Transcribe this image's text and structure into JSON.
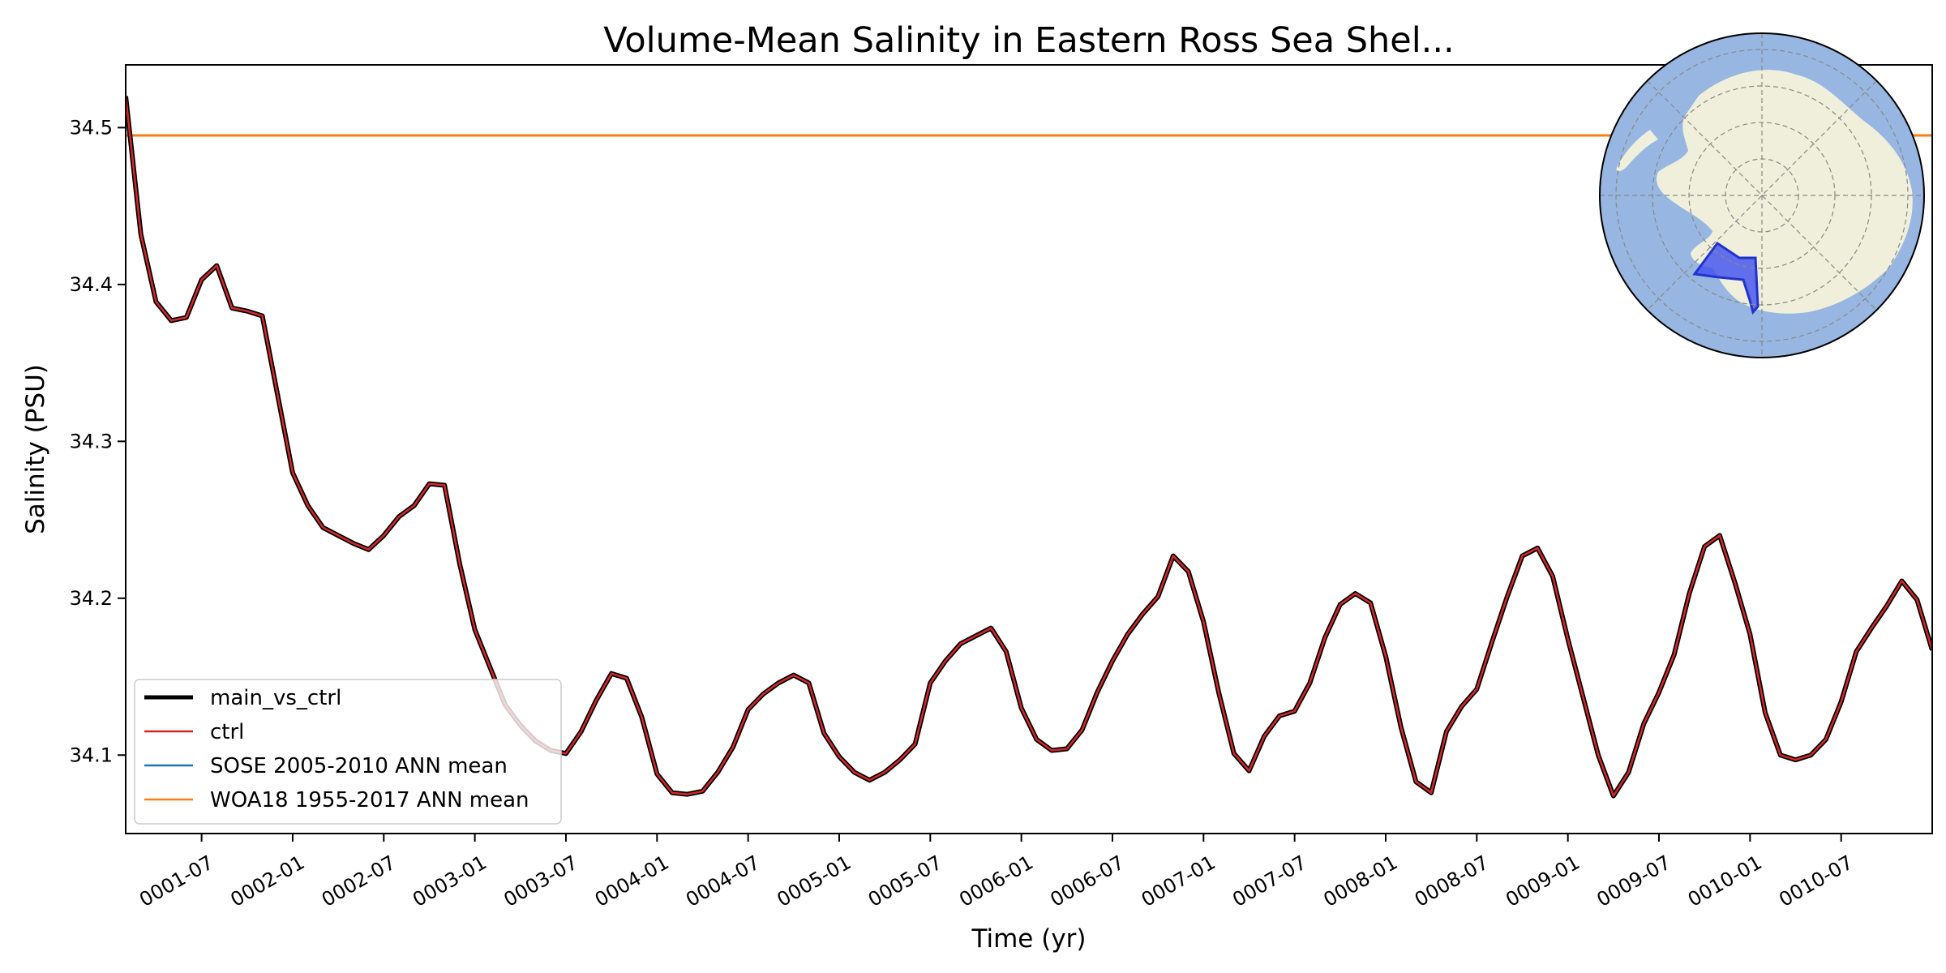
{
  "chart_data": {
    "type": "line",
    "title": "Volume-Mean Salinity in Eastern Ross Sea Shel...",
    "xlabel": "Time (yr)",
    "ylabel": "Salinity (PSU)",
    "xlim": [
      1.0833,
      11.0
    ],
    "ylim": [
      34.05,
      34.54
    ],
    "x_ticks": [
      {
        "label": "0001-07",
        "value": 1.5
      },
      {
        "label": "0002-01",
        "value": 2.0
      },
      {
        "label": "0002-07",
        "value": 2.5
      },
      {
        "label": "0003-01",
        "value": 3.0
      },
      {
        "label": "0003-07",
        "value": 3.5
      },
      {
        "label": "0004-01",
        "value": 4.0
      },
      {
        "label": "0004-07",
        "value": 4.5
      },
      {
        "label": "0005-01",
        "value": 5.0
      },
      {
        "label": "0005-07",
        "value": 5.5
      },
      {
        "label": "0006-01",
        "value": 6.0
      },
      {
        "label": "0006-07",
        "value": 6.5
      },
      {
        "label": "0007-01",
        "value": 7.0
      },
      {
        "label": "0007-07",
        "value": 7.5
      },
      {
        "label": "0008-01",
        "value": 8.0
      },
      {
        "label": "0008-07",
        "value": 8.5
      },
      {
        "label": "0009-01",
        "value": 9.0
      },
      {
        "label": "0009-07",
        "value": 9.5
      },
      {
        "label": "0010-01",
        "value": 10.0
      },
      {
        "label": "0010-07",
        "value": 10.5
      }
    ],
    "y_ticks": [
      {
        "label": "34.1",
        "value": 34.1
      },
      {
        "label": "34.2",
        "value": 34.2
      },
      {
        "label": "34.3",
        "value": 34.3
      },
      {
        "label": "34.4",
        "value": 34.4
      },
      {
        "label": "34.5",
        "value": 34.5
      }
    ],
    "series": [
      {
        "name": "main_vs_ctrl",
        "color": "#000000",
        "values": [
          34.52,
          34.432,
          34.389,
          34.377,
          34.379,
          34.403,
          34.412,
          34.385,
          34.383,
          34.38,
          34.33,
          34.28,
          34.259,
          34.245,
          34.24,
          34.235,
          34.231,
          34.24,
          34.252,
          34.259,
          34.273,
          34.272,
          34.222,
          34.18,
          34.156,
          34.132,
          34.119,
          34.109,
          34.103,
          34.101,
          34.115,
          34.135,
          34.152,
          34.149,
          34.124,
          34.088,
          34.076,
          34.075,
          34.077,
          34.089,
          34.105,
          34.129,
          34.139,
          34.146,
          34.151,
          34.146,
          34.114,
          34.099,
          34.089,
          34.084,
          34.089,
          34.097,
          34.107,
          34.146,
          34.16,
          34.171,
          34.176,
          34.181,
          34.166,
          34.13,
          34.11,
          34.103,
          34.104,
          34.116,
          34.14,
          34.16,
          34.177,
          34.19,
          34.201,
          34.227,
          34.217,
          34.185,
          34.14,
          34.101,
          34.09,
          34.112,
          34.125,
          34.128,
          34.146,
          34.175,
          34.196,
          34.203,
          34.197,
          34.163,
          34.118,
          34.083,
          34.076,
          34.115,
          34.131,
          34.142,
          34.172,
          34.201,
          34.227,
          34.232,
          34.214,
          34.174,
          34.137,
          34.1,
          34.074,
          34.089,
          34.12,
          34.14,
          34.164,
          34.203,
          34.233,
          34.24,
          34.21,
          34.177,
          34.127,
          34.1,
          34.097,
          34.1,
          34.11,
          34.134,
          34.166,
          34.181,
          34.195,
          34.211,
          34.199,
          34.167
        ]
      },
      {
        "name": "ctrl",
        "color": "#d62728",
        "values": [
          34.52,
          34.432,
          34.389,
          34.377,
          34.379,
          34.403,
          34.412,
          34.385,
          34.383,
          34.38,
          34.33,
          34.28,
          34.259,
          34.245,
          34.24,
          34.235,
          34.231,
          34.24,
          34.252,
          34.259,
          34.273,
          34.272,
          34.222,
          34.18,
          34.156,
          34.132,
          34.119,
          34.109,
          34.103,
          34.101,
          34.115,
          34.135,
          34.152,
          34.149,
          34.124,
          34.088,
          34.076,
          34.075,
          34.077,
          34.089,
          34.105,
          34.129,
          34.139,
          34.146,
          34.151,
          34.146,
          34.114,
          34.099,
          34.089,
          34.084,
          34.089,
          34.097,
          34.107,
          34.146,
          34.16,
          34.171,
          34.176,
          34.181,
          34.166,
          34.13,
          34.11,
          34.103,
          34.104,
          34.116,
          34.14,
          34.16,
          34.177,
          34.19,
          34.201,
          34.227,
          34.217,
          34.185,
          34.14,
          34.101,
          34.09,
          34.112,
          34.125,
          34.128,
          34.146,
          34.175,
          34.196,
          34.203,
          34.197,
          34.163,
          34.118,
          34.083,
          34.076,
          34.115,
          34.131,
          34.142,
          34.172,
          34.201,
          34.227,
          34.232,
          34.214,
          34.174,
          34.137,
          34.1,
          34.074,
          34.089,
          34.12,
          34.14,
          34.164,
          34.203,
          34.233,
          34.24,
          34.21,
          34.177,
          34.127,
          34.1,
          34.097,
          34.1,
          34.11,
          34.134,
          34.166,
          34.181,
          34.195,
          34.211,
          34.199,
          34.167
        ]
      },
      {
        "name": "SOSE 2005-2010 ANN mean",
        "color": "#1f77b4",
        "values": []
      },
      {
        "name": "WOA18 1955-2017 ANN mean",
        "color": "#ff7f0e",
        "constant": 34.495
      }
    ],
    "legend": {
      "position": "lower-left",
      "entries": [
        "main_vs_ctrl",
        "ctrl",
        "SOSE 2005-2010 ANN mean",
        "WOA18 1955-2017 ANN mean"
      ]
    },
    "inset_map": {
      "description_colors": {
        "ocean": "#97b6e1",
        "land": "#efefdb",
        "region": "#3f4ff0"
      }
    }
  }
}
